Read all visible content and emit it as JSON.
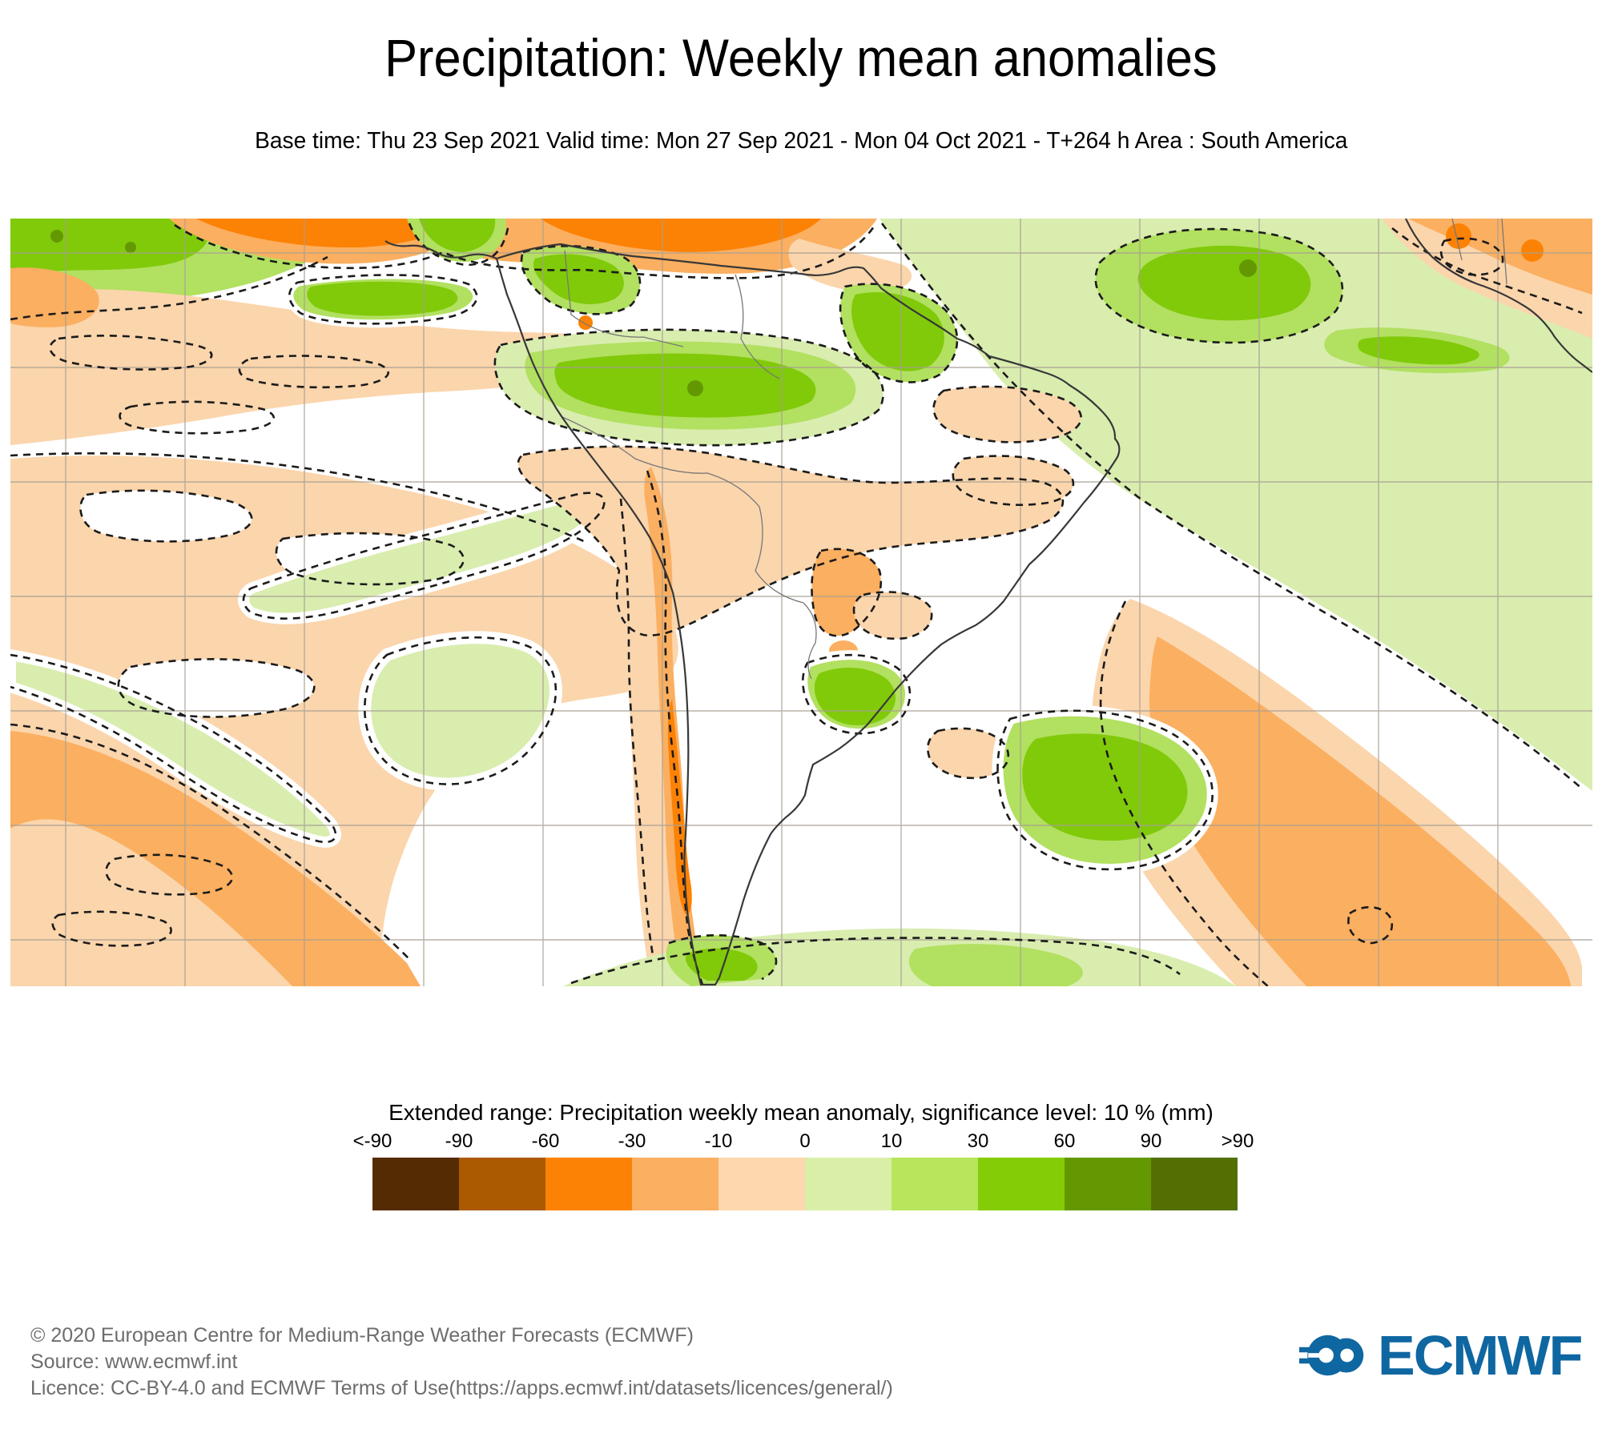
{
  "header": {
    "title": "Precipitation: Weekly mean anomalies",
    "subtitle": "Base time: Thu 23 Sep 2021 Valid time: Mon 27 Sep 2021 - Mon 04 Oct 2021 - T+264 h Area : South America"
  },
  "legend": {
    "title": "Extended range: Precipitation weekly mean anomaly, significance level: 10 % (mm)",
    "tick_labels": [
      "<-90",
      "-90",
      "-60",
      "-30",
      "-10",
      "0",
      "10",
      "30",
      "60",
      "90",
      ">90"
    ],
    "colors": [
      "#552B03",
      "#AC5A02",
      "#FC8205",
      "#FBAF60",
      "#FED7AE",
      "#D9EFA8",
      "#B8E55C",
      "#84CC06",
      "#639803",
      "#536F02"
    ]
  },
  "chart_data": {
    "type": "heatmap",
    "title": "Precipitation: Weekly mean anomalies",
    "variable": "Precipitation weekly mean anomaly",
    "units": "mm",
    "significance_level": "10 %",
    "base_time": "Thu 23 Sep 2021",
    "valid_time": "Mon 27 Sep 2021 - Mon 04 Oct 2021",
    "lead_time": "T+264 h",
    "area": "South America",
    "legend_position": "bottom",
    "grid": {
      "gridlines_on": true,
      "approx_spacing_deg": 10
    },
    "color_scale": {
      "boundary_labels": [
        "<-90",
        "-90",
        "-60",
        "-30",
        "-10",
        "0",
        "10",
        "30",
        "60",
        "90",
        ">90"
      ],
      "bin_colors": [
        "#552B03",
        "#AC5A02",
        "#FC8205",
        "#FBAF60",
        "#FED7AE",
        "#D9EFA8",
        "#B8E55C",
        "#84CC06",
        "#639803",
        "#536F02"
      ],
      "negative_meaning": "drier than normal (brown/orange)",
      "positive_meaning": "wetter than normal (green)"
    },
    "notable_regions": [
      {
        "area": "Equatorial Pacific ITCZ band along map top",
        "anomaly_mm": "-10 to -60"
      },
      {
        "area": "Far eastern Pacific / Panama-Colombia coast",
        "anomaly_mm": "+10 to +60"
      },
      {
        "area": "Equatorial eastern Pacific patch west of Ecuador",
        "anomaly_mm": "+30 to +60"
      },
      {
        "area": "Central Amazonia band",
        "anomaly_mm": "+10 to +60"
      },
      {
        "area": "Guianas coast",
        "anomaly_mm": "+30 to +60"
      },
      {
        "area": "Tropical North Atlantic (large green mass, top right)",
        "anomaly_mm": "+10 to +60"
      },
      {
        "area": "West African coast (top right corner)",
        "anomaly_mm": "-10 to -60"
      },
      {
        "area": "Subtropical southeast Pacific (broad band)",
        "anomaly_mm": "-10 to -30"
      },
      {
        "area": "Andes / Chile coastal strip",
        "anomaly_mm": "-30 to -60"
      },
      {
        "area": "Paraguay and adjacent southern Brazil",
        "anomaly_mm": "-10 to -30"
      },
      {
        "area": "Central Argentina patch",
        "anomaly_mm": "0 to +10"
      },
      {
        "area": "Uruguay / Rio de la Plata",
        "anomaly_mm": "+10 to +30"
      },
      {
        "area": "Offshore southern Brazil (green blob)",
        "anomaly_mm": "+10 to +30"
      },
      {
        "area": "Subtropical South Atlantic diagonal band",
        "anomaly_mm": "-10 to -30"
      },
      {
        "area": "Mid-latitude South Atlantic / far south band",
        "anomaly_mm": "0 to +30"
      }
    ]
  },
  "footer": {
    "copyright": "© 2020 European Centre for Medium-Range Weather Forecasts (ECMWF)",
    "source": "Source: www.ecmwf.int",
    "licence": "Licence: CC-BY-4.0 and ECMWF Terms of Use(https://apps.ecmwf.int/datasets/licences/general/)",
    "logo_text": "ECMWF"
  }
}
